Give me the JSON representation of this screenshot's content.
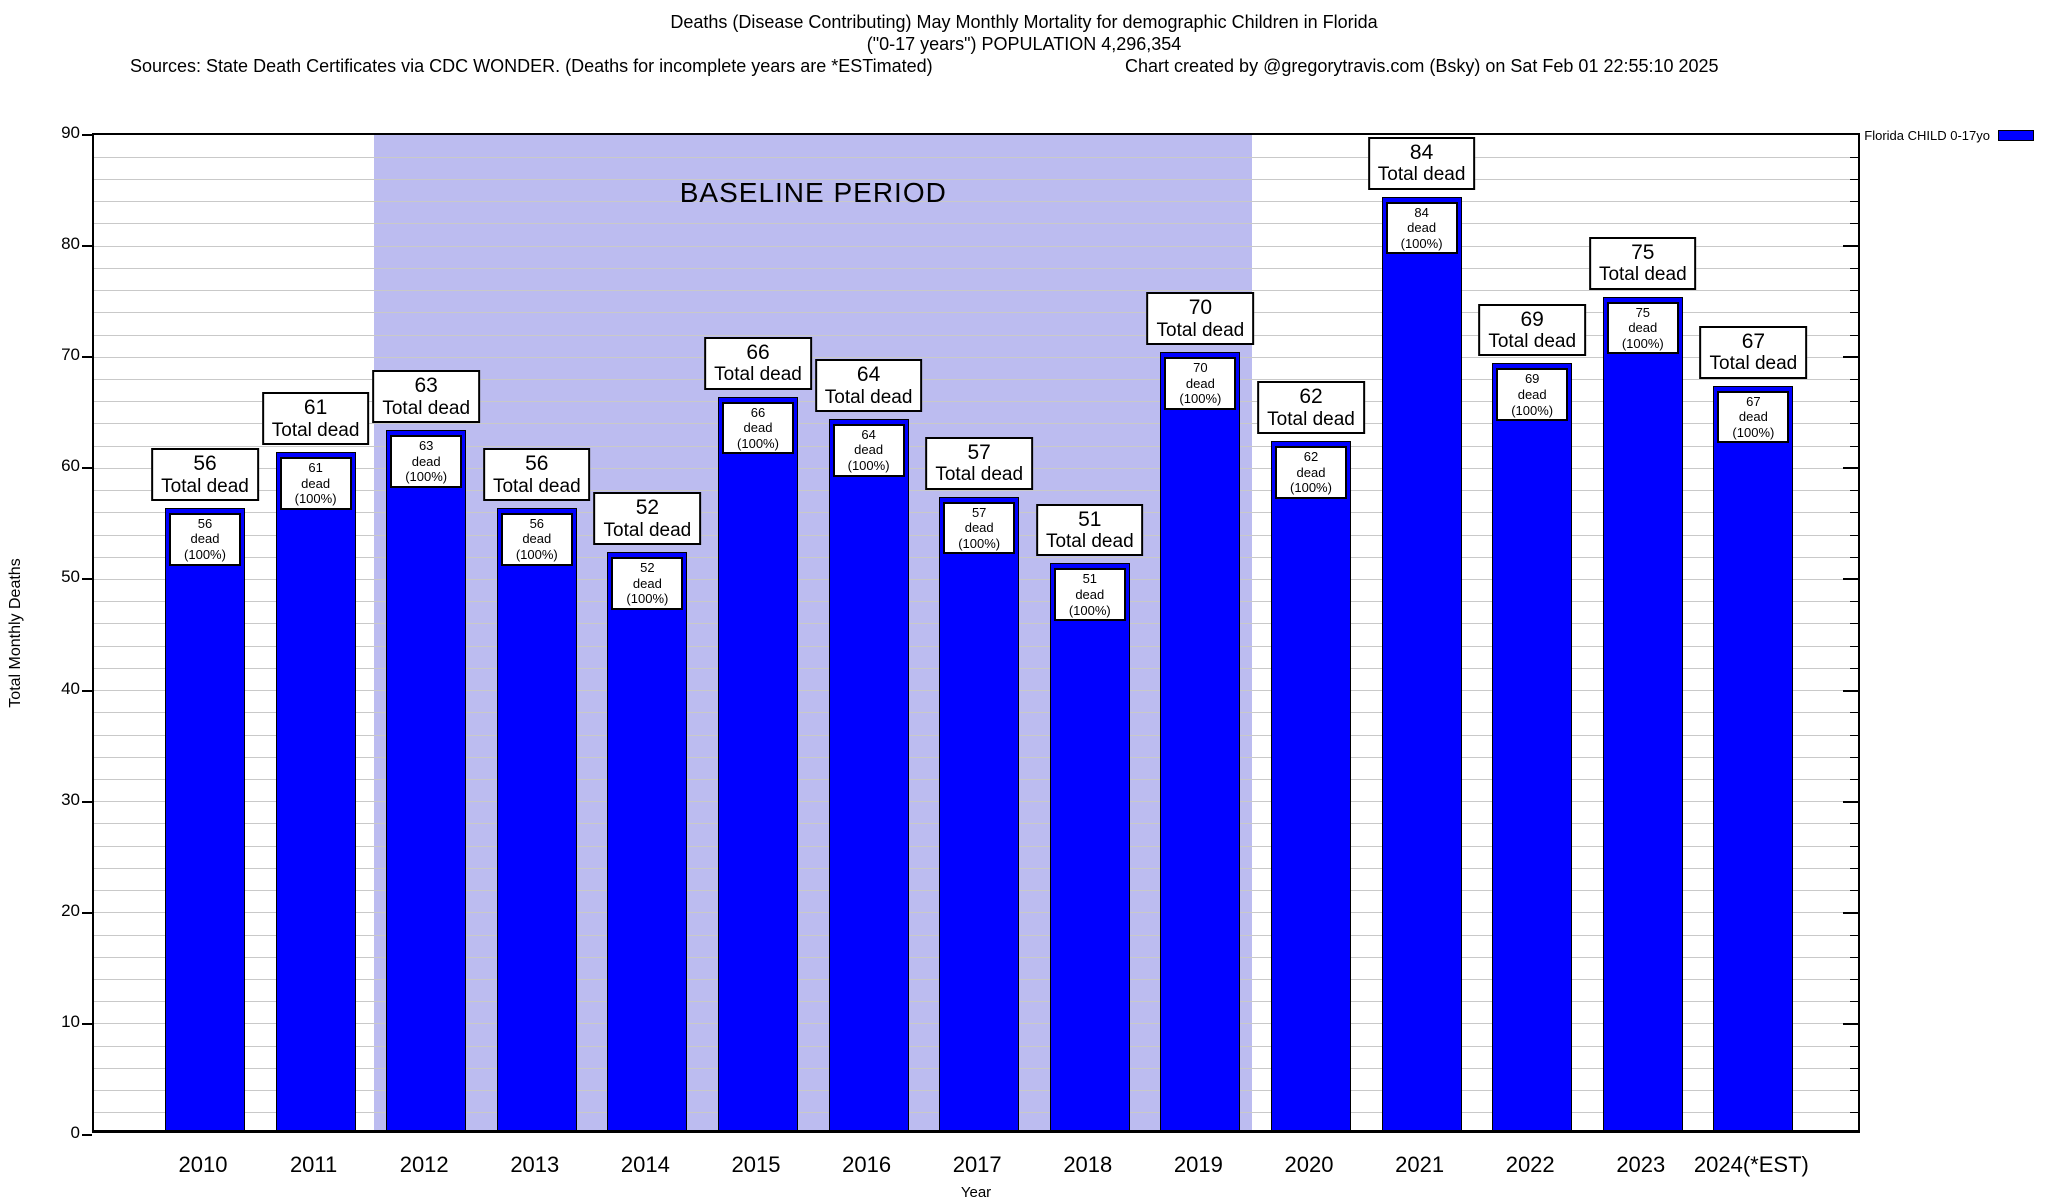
{
  "header": {
    "title_line1": "Deaths (Disease Contributing) May Monthly Mortality for demographic Children in Florida",
    "title_line2": "(\"0-17 years\") POPULATION 4,296,354",
    "sources": "Sources: State Death Certificates via CDC WONDER. (Deaths for incomplete years are *ESTimated)",
    "credit": "Chart created by @gregorytravis.com (Bsky) on Sat Feb 01 22:55:10 2025"
  },
  "legend": {
    "label": "Florida CHILD 0-17yo",
    "swatch_color": "#0000FF"
  },
  "chart_data": {
    "type": "bar",
    "title": "Deaths (Disease Contributing) May Monthly Mortality for demographic Children in Florida (\"0-17 years\") POPULATION 4,296,354",
    "categories": [
      "2010",
      "2011",
      "2012",
      "2013",
      "2014",
      "2015",
      "2016",
      "2017",
      "2018",
      "2019",
      "2020",
      "2021",
      "2022",
      "2023",
      "2024(*EST)"
    ],
    "values": [
      56,
      61,
      63,
      56,
      52,
      66,
      64,
      57,
      51,
      70,
      62,
      84,
      69,
      75,
      67
    ],
    "series_name": "Florida CHILD 0-17yo",
    "xlabel": "Year",
    "ylabel": "Total Monthly Deaths",
    "ylim": [
      0,
      90
    ],
    "ytick_major_step": 10,
    "ytick_minor_step": 2,
    "grid": true,
    "legend_position": "top-right",
    "bar_color": "#0000FF",
    "bar_top_annotation_suffix": "Total dead",
    "bar_inner_annotation_suffix": "dead (100%)",
    "baseline_region": {
      "label": "BASELINE PERIOD",
      "start_category": "2012",
      "end_category": "2019",
      "color": "#BCBCF0"
    }
  }
}
